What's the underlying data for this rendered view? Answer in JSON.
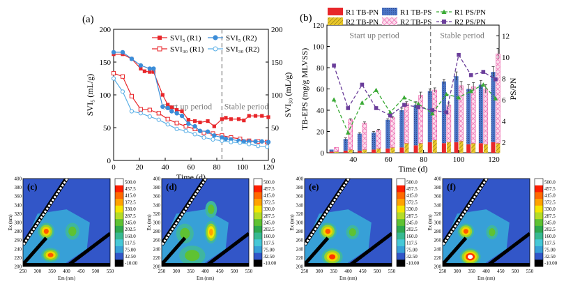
{
  "chart_data": [
    {
      "panel_label": "(a)",
      "type": "line",
      "x_axis": {
        "label": "Time (d)",
        "range": [
          0,
          120
        ],
        "ticks": [
          0,
          20,
          40,
          60,
          80,
          100,
          120
        ]
      },
      "y_left": {
        "label": "SVI₅ (mL/g)",
        "range": [
          0,
          200
        ],
        "ticks": [
          0,
          50,
          100,
          150,
          200
        ]
      },
      "y_right": {
        "label": "SVI₃₀ (mL/g)",
        "range": [
          0,
          200
        ],
        "ticks": [
          0,
          50,
          100,
          150,
          200
        ]
      },
      "divider_x": 84,
      "period_labels": [
        {
          "text": "Start up period",
          "x": 57,
          "y": 78
        },
        {
          "text": "Stable period",
          "x": 103,
          "y": 78
        }
      ],
      "legend": {
        "position": "top-right"
      },
      "series": [
        {
          "name": "SVI₅ (R1)",
          "color": "#e8262a",
          "marker": "square-filled",
          "x": [
            0,
            7,
            14,
            21,
            24,
            28,
            31,
            38,
            42,
            45,
            49,
            53,
            58,
            63,
            67,
            73,
            78,
            84,
            87,
            91,
            97,
            101,
            105,
            110,
            115,
            120
          ],
          "y": [
            162,
            162,
            155,
            140,
            136,
            135,
            135,
            100,
            85,
            81,
            77,
            75,
            62,
            60,
            58,
            60,
            52,
            63,
            65,
            63,
            63,
            61,
            68,
            68,
            68,
            66
          ]
        },
        {
          "name": "SVI₃₀ (R1)",
          "color": "#e8262a",
          "marker": "square-open",
          "x": [
            0,
            7,
            14,
            21,
            28,
            35,
            42,
            49,
            56,
            63,
            70,
            77,
            84,
            91,
            98,
            105,
            112,
            119
          ],
          "y": [
            133,
            128,
            98,
            78,
            77,
            72,
            63,
            57,
            52,
            48,
            42,
            41,
            38,
            35,
            33,
            30,
            29,
            28
          ]
        },
        {
          "name": "SVI₅ (R2)",
          "color": "#3c8dd8",
          "marker": "circle-filled",
          "x": [
            0,
            7,
            14,
            21,
            28,
            31,
            38,
            42,
            45,
            49,
            53,
            58,
            63,
            67,
            73,
            78,
            84,
            87,
            91,
            97,
            101,
            105,
            110,
            115,
            120
          ],
          "y": [
            165,
            165,
            155,
            145,
            140,
            140,
            82,
            80,
            75,
            72,
            68,
            56,
            52,
            45,
            44,
            38,
            35,
            33,
            32,
            30,
            29,
            29,
            29,
            29,
            28
          ]
        },
        {
          "name": "SVI₃₀ (R2)",
          "color": "#5aafe6",
          "marker": "circle-open",
          "x": [
            0,
            7,
            14,
            21,
            28,
            35,
            42,
            49,
            56,
            63,
            70,
            77,
            84,
            91,
            98,
            105,
            112,
            119
          ],
          "y": [
            125,
            105,
            75,
            72,
            67,
            62,
            55,
            48,
            45,
            40,
            35,
            32,
            30,
            28,
            27,
            25,
            22,
            21
          ]
        }
      ]
    },
    {
      "panel_label": "(b)",
      "type": "bar",
      "x_axis": {
        "label": "Time (d)",
        "range": [
          25,
          123
        ],
        "ticks": [
          40,
          60,
          80,
          100,
          120
        ]
      },
      "y_left": {
        "label": "TB-EPS (mg/g MLVSS)",
        "range": [
          0,
          120
        ],
        "ticks": [
          0,
          20,
          40,
          60,
          80,
          100,
          120
        ]
      },
      "y_right": {
        "label": "PS/PN",
        "range": [
          1,
          13
        ],
        "ticks": [
          2,
          4,
          6,
          8,
          10,
          12
        ]
      },
      "divider_x": 84,
      "period_labels": [
        {
          "text": "Start up period",
          "x": 52,
          "y": 108
        },
        {
          "text": "Stable period",
          "x": 102,
          "y": 108
        }
      ],
      "legend": {
        "position": "top"
      },
      "legend_entries": [
        "R1 TB-PN",
        "R1 TB-PS",
        "R1 PS/PN",
        "R2 TB-PN",
        "R2 TB-PS",
        "R2 PS/PN"
      ],
      "x": [
        29,
        37,
        45,
        53,
        61,
        69,
        77,
        85,
        93,
        100,
        107,
        114,
        121
      ],
      "bars": {
        "R1 TB-PN": {
          "color": "#e8262a",
          "values": [
            1,
            2,
            2,
            3,
            4,
            5,
            7,
            10,
            9,
            10,
            8,
            9,
            10
          ]
        },
        "R1 TB-PS": {
          "color": "#4a73c4",
          "values": [
            2,
            11,
            16,
            16,
            27,
            35,
            38,
            48,
            58,
            62,
            52,
            55,
            66
          ]
        },
        "R2 TB-PN": {
          "color": "#e8c62a",
          "values": [
            1,
            3,
            3,
            4,
            5,
            9,
            9,
            12,
            10,
            11,
            9,
            8,
            9
          ]
        },
        "R2 TB-PS": {
          "color": "#f29ac8",
          "values": [
            4,
            28,
            25,
            17,
            28,
            37,
            45,
            47,
            35,
            52,
            53,
            52,
            84
          ]
        }
      },
      "bar_errors": [
        0,
        1,
        1,
        1,
        1,
        2,
        3,
        2,
        2,
        4,
        4,
        4,
        5
      ],
      "lines": [
        {
          "name": "R1 PS/PN",
          "color": "#3aaa35",
          "marker": "triangle",
          "x": [
            29,
            37,
            45,
            53,
            61,
            69,
            77,
            85,
            93,
            100,
            107,
            114,
            121
          ],
          "y": [
            6.0,
            2.9,
            5.7,
            6.9,
            4.8,
            6.2,
            5.6,
            4.7,
            6.5,
            6.2,
            6.8,
            7.4,
            6.1
          ]
        },
        {
          "name": "R2 PS/PN",
          "color": "#6a3d9a",
          "marker": "square",
          "x": [
            29,
            37,
            45,
            53,
            61,
            69,
            77,
            85,
            93,
            100,
            107,
            114,
            121
          ],
          "y": [
            9.2,
            5.2,
            7.4,
            5.2,
            4.5,
            5.5,
            5.3,
            5.0,
            4.8,
            10.2,
            8.3,
            8.6,
            7.9
          ]
        }
      ]
    },
    {
      "type": "heatmap",
      "panels": [
        "(c)",
        "(d)",
        "(e)",
        "(f)"
      ],
      "x_axis": {
        "label": "Em (nm)",
        "range": [
          250,
          550
        ],
        "ticks": [
          250,
          300,
          350,
          400,
          450,
          500,
          550
        ]
      },
      "y_axis": {
        "label": "Ex (nm)",
        "range": [
          200,
          400
        ],
        "ticks": [
          200,
          220,
          240,
          260,
          280,
          300,
          320,
          340,
          360,
          380,
          400
        ]
      },
      "colorbar": {
        "labels": [
          "500.0",
          "457.5",
          "415.0",
          "372.5",
          "330.0",
          "287.5",
          "245.0",
          "202.5",
          "160.0",
          "117.5",
          "75.00",
          "32.50",
          "-10.00"
        ],
        "colors": [
          "#ffffff",
          "#ff1e00",
          "#ff6a00",
          "#ffa200",
          "#f5e600",
          "#b4dc28",
          "#5fc232",
          "#2ea84e",
          "#37b991",
          "#46c8d7",
          "#37a0d7",
          "#3256c8",
          "#000000"
        ]
      }
    }
  ]
}
